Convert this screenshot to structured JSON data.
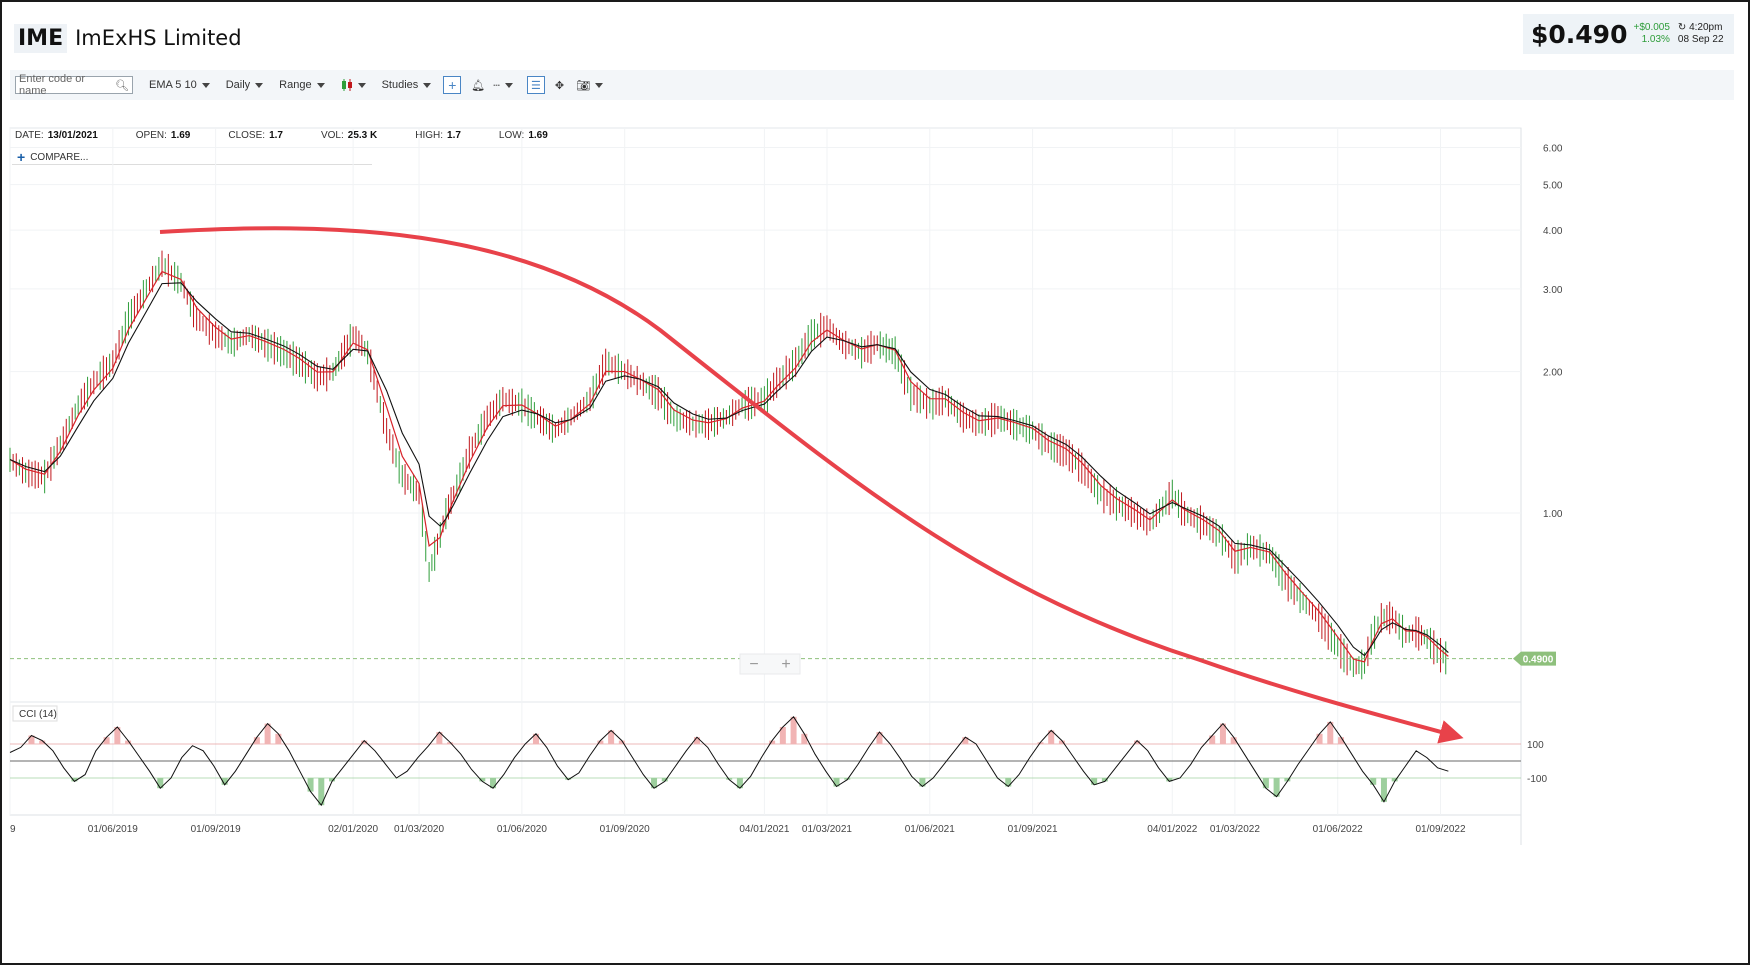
{
  "header": {
    "ticker": "IME",
    "company": "ImExHS Limited"
  },
  "quote": {
    "price": "$0.490",
    "change_abs": "+$0.005",
    "change_pct": "1.03%",
    "time": "4:20pm",
    "date": "08 Sep 22"
  },
  "toolbar": {
    "search_placeholder": "Enter code or name",
    "ema": "EMA 5 10",
    "interval": "Daily",
    "range": "Range",
    "studies": "Studies"
  },
  "info": {
    "date_label": "DATE:",
    "date": "13/01/2021",
    "open_label": "OPEN:",
    "open": "1.69",
    "close_label": "CLOSE:",
    "close": "1.7",
    "vol_label": "VOL:",
    "vol": "25.3 K",
    "high_label": "HIGH:",
    "high": "1.7",
    "low_label": "LOW:",
    "low": "1.69",
    "compare": "COMPARE..."
  },
  "colors": {
    "up": "#2e9d3a",
    "down": "#c0171c",
    "ema_fast": "#d8232a",
    "ema_slow": "#111111",
    "arrow": "#e8424a",
    "last_price": "#8ec07c"
  },
  "chart_data": {
    "type": "line",
    "scale": "log",
    "ylim": [
      0.4,
      6.6
    ],
    "y_ticks": [
      6.0,
      5.0,
      4.0,
      3.0,
      2.0,
      1.0
    ],
    "y_tick_labels": [
      "6.00",
      "5.00",
      "4.00",
      "3.00",
      "2.00",
      "1.00"
    ],
    "x_ticks": [
      "9",
      "01/06/2019",
      "01/09/2019",
      "02/01/2020",
      "01/03/2020",
      "01/06/2020",
      "01/09/2020",
      "04/01/2021",
      "01/03/2021",
      "01/06/2021",
      "01/09/2021",
      "04/01/2022",
      "01/03/2022",
      "01/06/2022",
      "01/09/2022"
    ],
    "last_price_label": "0.4900",
    "zoom": [
      "−",
      "+"
    ],
    "series": [
      {
        "x": [
          "2019-03-01",
          "2019-03-15",
          "2019-04-01",
          "2019-04-15",
          "2019-05-01",
          "2019-05-15",
          "2019-06-01",
          "2019-06-15",
          "2019-07-01",
          "2019-07-15",
          "2019-08-01",
          "2019-08-15",
          "2019-09-01",
          "2019-09-15",
          "2019-10-01",
          "2019-10-15",
          "2019-11-01",
          "2019-11-15",
          "2019-12-01",
          "2019-12-15",
          "2020-01-02",
          "2020-01-15",
          "2020-02-01",
          "2020-02-15",
          "2020-03-01",
          "2020-03-10",
          "2020-03-20",
          "2020-03-25",
          "2020-04-01",
          "2020-04-15",
          "2020-05-01",
          "2020-05-15",
          "2020-06-01",
          "2020-06-15",
          "2020-07-01",
          "2020-07-15",
          "2020-08-01",
          "2020-08-15",
          "2020-09-01",
          "2020-09-15",
          "2020-10-01",
          "2020-10-15",
          "2020-11-01",
          "2020-11-15",
          "2020-12-01",
          "2020-12-15",
          "2021-01-04",
          "2021-01-15",
          "2021-02-01",
          "2021-02-15",
          "2021-03-01",
          "2021-03-15",
          "2021-04-01",
          "2021-04-15",
          "2021-05-01",
          "2021-05-15",
          "2021-06-01",
          "2021-06-15",
          "2021-07-01",
          "2021-07-15",
          "2021-08-01",
          "2021-08-15",
          "2021-09-01",
          "2021-09-15",
          "2021-10-01",
          "2021-10-15",
          "2021-11-01",
          "2021-11-15",
          "2021-12-01",
          "2021-12-15",
          "2022-01-04",
          "2022-01-15",
          "2022-02-01",
          "2022-02-15",
          "2022-03-01",
          "2022-03-15",
          "2022-04-01",
          "2022-04-15",
          "2022-05-01",
          "2022-05-15",
          "2022-06-01",
          "2022-06-15",
          "2022-06-25",
          "2022-07-01",
          "2022-07-10",
          "2022-07-20",
          "2022-08-01",
          "2022-08-10",
          "2022-08-20",
          "2022-09-01",
          "2022-09-08"
        ],
        "values": [
          1.3,
          1.22,
          1.2,
          1.4,
          1.7,
          1.9,
          2.1,
          2.6,
          3.0,
          3.4,
          3.1,
          2.6,
          2.4,
          2.3,
          2.4,
          2.3,
          2.2,
          2.1,
          1.95,
          2.0,
          2.4,
          2.2,
          1.5,
          1.2,
          1.1,
          0.75,
          0.9,
          1.0,
          1.1,
          1.35,
          1.6,
          1.75,
          1.7,
          1.6,
          1.5,
          1.6,
          1.75,
          2.1,
          2.0,
          1.9,
          1.8,
          1.6,
          1.55,
          1.55,
          1.6,
          1.7,
          1.75,
          1.9,
          2.1,
          2.4,
          2.5,
          2.3,
          2.2,
          2.3,
          2.2,
          1.8,
          1.7,
          1.75,
          1.6,
          1.55,
          1.6,
          1.55,
          1.5,
          1.4,
          1.35,
          1.25,
          1.1,
          1.05,
          1.0,
          0.95,
          1.1,
          1.0,
          0.95,
          0.9,
          0.8,
          0.85,
          0.82,
          0.72,
          0.65,
          0.6,
          0.52,
          0.47,
          0.48,
          0.54,
          0.6,
          0.6,
          0.55,
          0.56,
          0.54,
          0.5,
          0.49
        ]
      }
    ],
    "cci": {
      "label": "CCI (14)",
      "levels": [
        100,
        -100
      ],
      "level_labels": [
        "100",
        "-100"
      ],
      "ylim": [
        -300,
        300
      ],
      "values": [
        50,
        80,
        150,
        120,
        60,
        -40,
        -120,
        -80,
        60,
        140,
        200,
        120,
        30,
        -60,
        -160,
        -100,
        20,
        90,
        60,
        -30,
        -140,
        -60,
        40,
        140,
        220,
        160,
        60,
        -60,
        -180,
        -260,
        -120,
        -40,
        40,
        120,
        60,
        -20,
        -100,
        -60,
        20,
        90,
        170,
        110,
        40,
        -50,
        -120,
        -160,
        -80,
        20,
        100,
        160,
        80,
        -30,
        -110,
        -70,
        30,
        120,
        180,
        120,
        20,
        -80,
        -160,
        -120,
        -30,
        60,
        140,
        80,
        -20,
        -110,
        -160,
        -90,
        20,
        120,
        200,
        260,
        160,
        40,
        -60,
        -150,
        -110,
        -20,
        80,
        170,
        100,
        10,
        -90,
        -150,
        -100,
        -20,
        60,
        140,
        100,
        0,
        -100,
        -150,
        -80,
        20,
        110,
        180,
        120,
        30,
        -60,
        -140,
        -120,
        -40,
        40,
        120,
        60,
        -40,
        -120,
        -100,
        -20,
        80,
        150,
        220,
        140,
        40,
        -60,
        -160,
        -210,
        -120,
        -20,
        70,
        160,
        230,
        140,
        40,
        -60,
        -140,
        -240,
        -120,
        -30,
        60,
        20,
        -40,
        -60
      ]
    }
  }
}
